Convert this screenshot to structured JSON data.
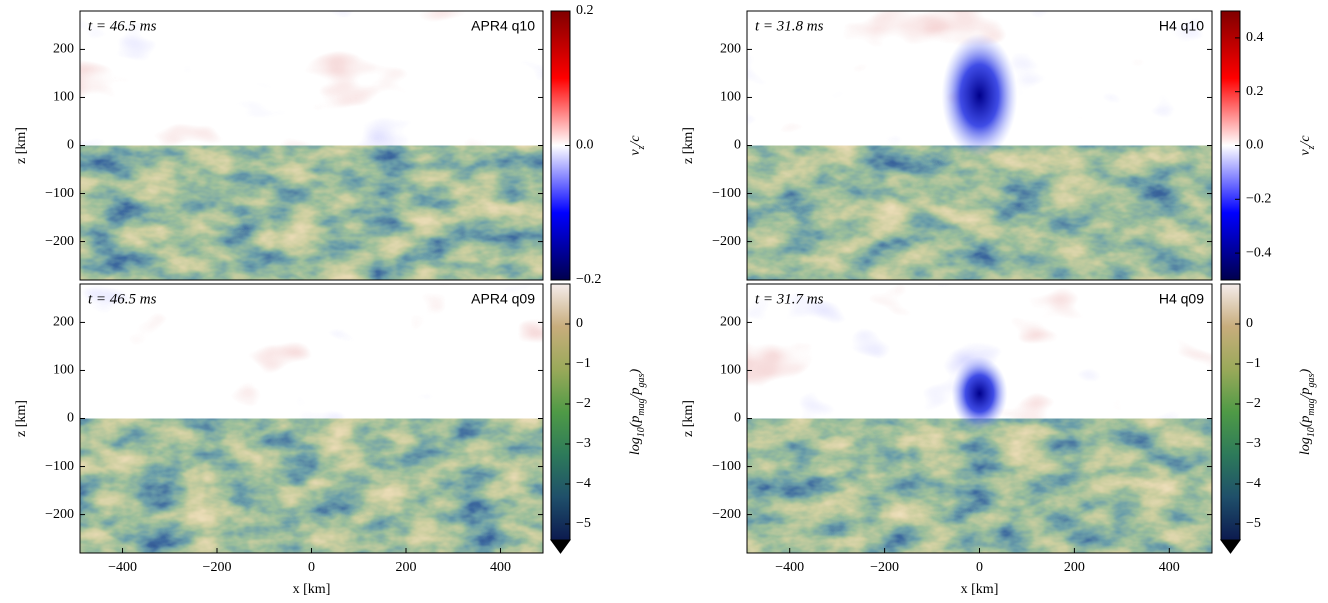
{
  "chart_data": [
    {
      "type": "heatmap",
      "time_label": "t = 46.5 ms",
      "model_label": "APR4 q10",
      "ylabel": "z [km]",
      "xlim": [
        -490,
        490
      ],
      "ylim": [
        -280,
        280
      ],
      "yticks": [
        {
          "value": -200,
          "label": "−200"
        },
        {
          "value": -100,
          "label": "−100"
        },
        0,
        100,
        200
      ],
      "colorbar": {
        "label_parts": [
          {
            "text": "v"
          },
          {
            "text": "z",
            "sub": true
          },
          {
            "text": "/c"
          }
        ],
        "lim": [
          -0.2,
          0.2
        ],
        "ticks": [
          {
            "value": -0.2,
            "label": "−0.2"
          },
          {
            "value": 0,
            "label": "0.0"
          },
          {
            "value": 0.2,
            "label": "0.2"
          }
        ],
        "colors": [
          "#00004d",
          "#0000ff",
          "#ffffff",
          "#ff0000",
          "#800000"
        ]
      }
    },
    {
      "type": "heatmap",
      "time_label": "t = 46.5 ms",
      "model_label": "APR4 q09",
      "ylabel": "z [km]",
      "xlabel": "x [km]",
      "xlim": [
        -490,
        490
      ],
      "ylim": [
        -280,
        280
      ],
      "xticks": [
        {
          "value": -400,
          "label": "−400"
        },
        {
          "value": -200,
          "label": "−200"
        },
        0,
        200,
        400
      ],
      "yticks": [
        {
          "value": -200,
          "label": "−200"
        },
        {
          "value": -100,
          "label": "−100"
        },
        0,
        100,
        200
      ],
      "colorbar": {
        "label_parts": [
          {
            "text": "log"
          },
          {
            "text": "10",
            "sub": true
          },
          {
            "text": "(p"
          },
          {
            "text": "mag",
            "sub": true
          },
          {
            "text": "/p"
          },
          {
            "text": "gas",
            "sub": true
          },
          {
            "text": ")"
          }
        ],
        "lim": [
          -5.4,
          1.0
        ],
        "ticks": [
          {
            "value": -5,
            "label": "−5"
          },
          {
            "value": -4,
            "label": "−4"
          },
          {
            "value": -3,
            "label": "−3"
          },
          {
            "value": -2,
            "label": "−2"
          },
          {
            "value": -1,
            "label": "−1"
          },
          0
        ],
        "colors": [
          "#0c1a4f",
          "#1f4f6a",
          "#2d7a5a",
          "#4f9a46",
          "#9aa95a",
          "#c8ad7c",
          "#f5eceb"
        ],
        "extend": "min",
        "under_color": "#000000"
      }
    },
    {
      "type": "heatmap",
      "time_label": "t = 31.8 ms",
      "model_label": "H4 q10",
      "ylabel": "z [km]",
      "xlim": [
        -490,
        490
      ],
      "ylim": [
        -280,
        280
      ],
      "yticks": [
        {
          "value": -200,
          "label": "−200"
        },
        {
          "value": -100,
          "label": "−100"
        },
        0,
        100,
        200
      ],
      "colorbar": {
        "label_parts": [
          {
            "text": "v"
          },
          {
            "text": "z",
            "sub": true
          },
          {
            "text": "/c"
          }
        ],
        "lim": [
          -0.5,
          0.5
        ],
        "ticks": [
          {
            "value": -0.4,
            "label": "−0.4"
          },
          {
            "value": -0.2,
            "label": "−0.2"
          },
          {
            "value": 0,
            "label": "0.0"
          },
          0.2,
          0.4
        ],
        "colors": [
          "#00004d",
          "#0000ff",
          "#ffffff",
          "#ff0000",
          "#800000"
        ]
      }
    },
    {
      "type": "heatmap",
      "time_label": "t = 31.7 ms",
      "model_label": "H4 q09",
      "ylabel": "z [km]",
      "xlabel": "x [km]",
      "xlim": [
        -490,
        490
      ],
      "ylim": [
        -280,
        280
      ],
      "xticks": [
        {
          "value": -400,
          "label": "−400"
        },
        {
          "value": -200,
          "label": "−200"
        },
        0,
        200,
        400
      ],
      "yticks": [
        {
          "value": -200,
          "label": "−200"
        },
        {
          "value": -100,
          "label": "−100"
        },
        0,
        100,
        200
      ],
      "colorbar": {
        "label_parts": [
          {
            "text": "log"
          },
          {
            "text": "10",
            "sub": true
          },
          {
            "text": "(p"
          },
          {
            "text": "mag",
            "sub": true
          },
          {
            "text": "/p"
          },
          {
            "text": "gas",
            "sub": true
          },
          {
            "text": ")"
          }
        ],
        "lim": [
          -5.4,
          1.0
        ],
        "ticks": [
          {
            "value": -5,
            "label": "−5"
          },
          {
            "value": -4,
            "label": "−4"
          },
          {
            "value": -3,
            "label": "−3"
          },
          {
            "value": -2,
            "label": "−2"
          },
          {
            "value": -1,
            "label": "−1"
          },
          0
        ],
        "colors": [
          "#0c1a4f",
          "#1f4f6a",
          "#2d7a5a",
          "#4f9a46",
          "#9aa95a",
          "#c8ad7c",
          "#f5eceb"
        ],
        "extend": "min",
        "under_color": "#000000"
      }
    }
  ]
}
